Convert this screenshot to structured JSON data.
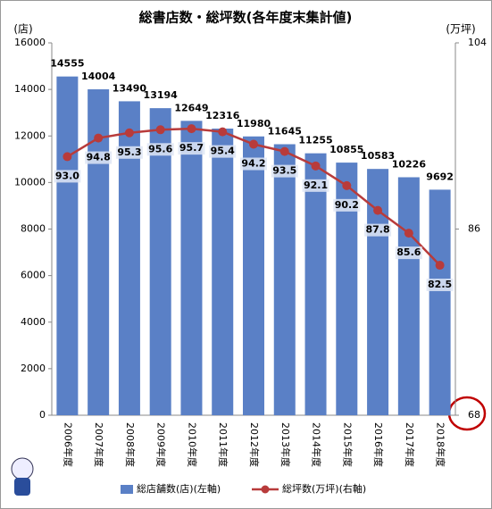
{
  "chart_data": {
    "type": "bar-line",
    "title": "総書店数・総坪数(各年度末集計値)",
    "y_label": "(店)",
    "y2_label": "(万坪)",
    "categories": [
      "2006年度",
      "2007年度",
      "2008年度",
      "2009年度",
      "2010年度",
      "2011年度",
      "2012年度",
      "2013年度",
      "2014年度",
      "2015年度",
      "2016年度",
      "2017年度",
      "2018年度"
    ],
    "series": [
      {
        "name": "総店舗数(店)(左軸)",
        "type": "bar",
        "color": "#5a80c6",
        "axis": "y",
        "values": [
          14555,
          14004,
          13490,
          13194,
          12649,
          12316,
          11980,
          11645,
          11255,
          10855,
          10583,
          10226,
          9692
        ]
      },
      {
        "name": "総坪数(万坪)(右軸)",
        "type": "line",
        "color": "#b83b3b",
        "axis": "y2",
        "values": [
          93.0,
          94.8,
          95.3,
          95.6,
          95.7,
          95.4,
          94.2,
          93.5,
          92.1,
          90.2,
          87.8,
          85.6,
          82.5
        ],
        "value_labels": [
          "93.0",
          "94.8",
          "95.3",
          "95.6",
          "95.7",
          "95.4",
          "94.2",
          "93.5",
          "92.1",
          "90.2",
          "87.8",
          "85.6",
          "82.5"
        ]
      }
    ],
    "ylim": [
      0,
      16000
    ],
    "yticks": [
      0,
      2000,
      4000,
      6000,
      8000,
      10000,
      12000,
      14000,
      16000
    ],
    "y2lim": [
      68,
      104
    ],
    "y2ticks": [
      68,
      86,
      104
    ],
    "legend": "bottom"
  }
}
